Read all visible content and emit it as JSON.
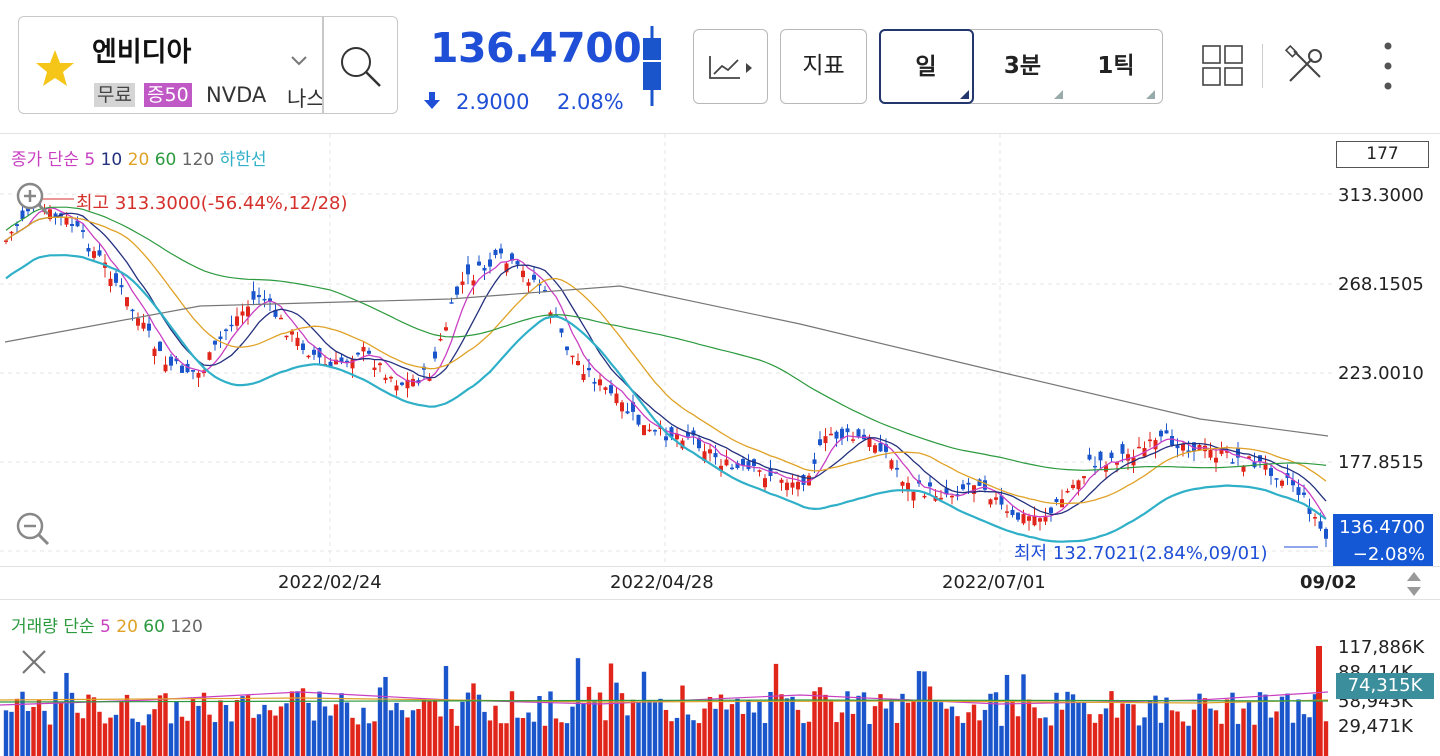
{
  "header": {
    "stock_name": "엔비디아",
    "tag_free": "무료",
    "tag_margin": "증50",
    "ticker": "NVDA",
    "market": "나스닥",
    "price": "136.4700",
    "change": "2.9000",
    "change_pct": "2.08%",
    "indicator_label": "지표",
    "periods": [
      "일",
      "3분",
      "1틱"
    ],
    "colors": {
      "accent": "#1f4fd6",
      "up": "#e0251b",
      "down": "#1a55cc"
    },
    "icons": [
      "star-icon",
      "chevron-down-icon",
      "search-icon",
      "candle-icon",
      "down-arrow-icon",
      "chart-type-icon",
      "grid-layout-icon",
      "tools-icon",
      "more-icon"
    ]
  },
  "price_panel": {
    "legend": {
      "ma_label": "종가 단순",
      "p5": "5",
      "p10": "10",
      "p20": "20",
      "p60": "60",
      "p120": "120",
      "lower": "하한선"
    },
    "box_value": "177",
    "y_labels": [
      "313.3000",
      "268.1505",
      "223.0010",
      "177.8515"
    ],
    "high_note": "최고 313.3000(-56.44%,12/28)",
    "low_note": "최저 132.7021(2.84%,09/01)",
    "current_price": "136.4700",
    "current_change": "−2.08%",
    "dates": [
      "2022/02/24",
      "2022/04/28",
      "2022/07/01"
    ],
    "last_date": "09/02"
  },
  "volume_panel": {
    "legend": {
      "label": "거래량 단순",
      "p5": "5",
      "p20": "20",
      "p60": "60",
      "p120": "120"
    },
    "y_labels": [
      "117,886K",
      "88,414K",
      "58,943K",
      "29,471K"
    ],
    "current": "74,315K"
  }
}
